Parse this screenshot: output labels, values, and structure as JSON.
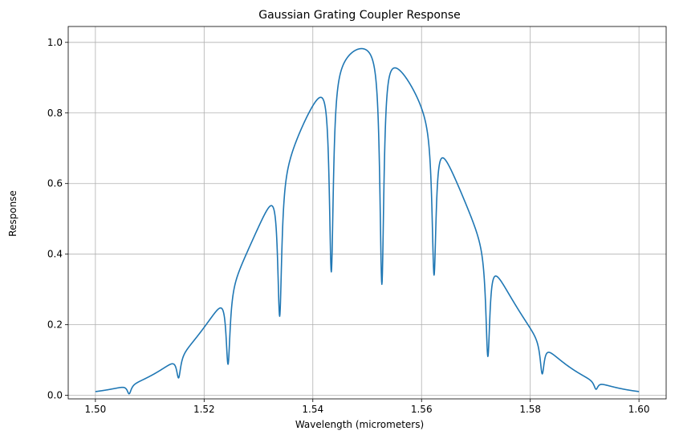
{
  "chart_data": {
    "type": "line",
    "title": "Gaussian Grating Coupler Response",
    "xlabel": "Wavelength (micrometers)",
    "ylabel": "Response",
    "xlim": [
      1.495,
      1.605
    ],
    "ylim": [
      -0.01,
      1.045
    ],
    "xticks": [
      1.5,
      1.52,
      1.54,
      1.56,
      1.58,
      1.6
    ],
    "xtick_labels": [
      "1.50",
      "1.52",
      "1.54",
      "1.56",
      "1.58",
      "1.60"
    ],
    "yticks": [
      0.0,
      0.2,
      0.4,
      0.6,
      0.8,
      1.0
    ],
    "ytick_labels": [
      "0.0",
      "0.2",
      "0.4",
      "0.6",
      "0.8",
      "1.0"
    ],
    "grid": true,
    "series": [
      {
        "color": "#1f77b4",
        "envelope": {
          "center": 1.55,
          "sigma": 0.0166,
          "start": 1.5,
          "end": 1.6,
          "samples": 2001
        },
        "dips": [
          {
            "x": 1.5062,
            "depth": 0.86,
            "width": 0.00045
          },
          {
            "x": 1.5153,
            "depth": 0.56,
            "width": 0.00045
          },
          {
            "x": 1.5244,
            "depth": 0.71,
            "width": 0.00045
          },
          {
            "x": 1.5339,
            "depth": 0.64,
            "width": 0.00045
          },
          {
            "x": 1.5434,
            "depth": 0.62,
            "width": 0.00045
          },
          {
            "x": 1.5527,
            "depth": 0.68,
            "width": 0.00045
          },
          {
            "x": 1.5623,
            "depth": 0.55,
            "width": 0.00045
          },
          {
            "x": 1.5722,
            "depth": 0.73,
            "width": 0.00045
          },
          {
            "x": 1.5822,
            "depth": 0.6,
            "width": 0.00045
          },
          {
            "x": 1.5921,
            "depth": 0.57,
            "width": 0.00045
          }
        ]
      }
    ]
  }
}
